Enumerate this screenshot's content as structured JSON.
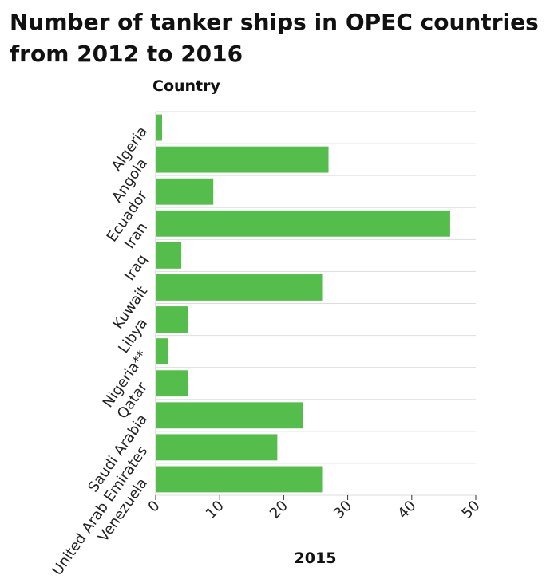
{
  "chart_data": {
    "type": "bar",
    "orientation": "horizontal",
    "title": "Number of tanker ships in OPEC countries from 2012 to 2016",
    "ylabel": "Country",
    "xlabel": "2015",
    "categories": [
      "Algeria",
      "Angola",
      "Ecuador",
      "Iran",
      "Iraq",
      "Kuwait",
      "Libya",
      "Nigeria**",
      "Qatar",
      "Saudi Arabia",
      "United Arab Emirates",
      "Venezuela"
    ],
    "values": [
      1,
      27,
      9,
      46,
      4,
      26,
      5,
      2,
      5,
      23,
      19,
      26
    ],
    "xlim": [
      0,
      50
    ],
    "xticks": [
      0,
      10,
      20,
      30,
      40,
      50
    ],
    "grid": true,
    "bar_color": "#55bd4b",
    "grid_color": "#dddddd"
  }
}
